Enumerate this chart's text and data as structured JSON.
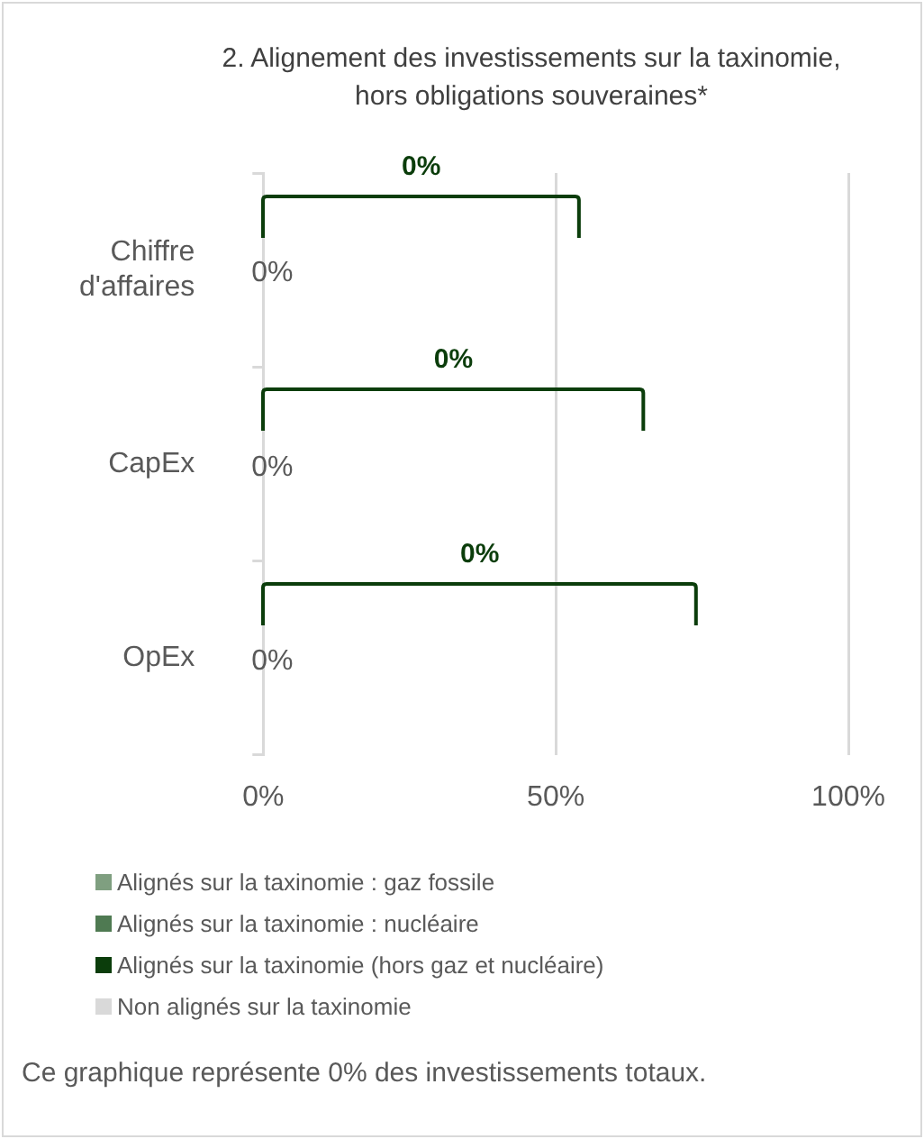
{
  "chart_data": {
    "type": "bar",
    "orientation": "horizontal",
    "stacked": true,
    "title": "2. Alignement des investissements sur la taxinomie, hors obligations souveraines*",
    "categories": [
      "Chiffre d'affaires",
      "CapEx",
      "OpEx"
    ],
    "series": [
      {
        "name": "Alignés sur la taxinomie : gaz fossile",
        "color": "#7f9f80",
        "values": [
          0,
          0,
          0
        ]
      },
      {
        "name": "Alignés sur la taxinomie : nucléaire",
        "color": "#4f7a52",
        "values": [
          0,
          0,
          0
        ]
      },
      {
        "name": "Alignés sur la taxinomie (hors gaz et nucléaire)",
        "color": "#0b3d0b",
        "values": [
          0,
          0,
          0
        ]
      },
      {
        "name": "Non alignés sur la taxinomie",
        "color": "#d9d9d9",
        "values": [
          0,
          0,
          0
        ],
        "value_labels": [
          "0%",
          "0%",
          "0%"
        ]
      }
    ],
    "xlim": [
      0,
      100
    ],
    "xticks": [
      {
        "value": 0,
        "label": "0%"
      },
      {
        "value": 50,
        "label": "50%"
      },
      {
        "value": 100,
        "label": "100%"
      }
    ],
    "grid": "x",
    "legend": "bottom",
    "annotations": [
      "0%",
      "0%",
      "0%",
      "Ce graphique représente 0% des investissements totaux."
    ]
  }
}
